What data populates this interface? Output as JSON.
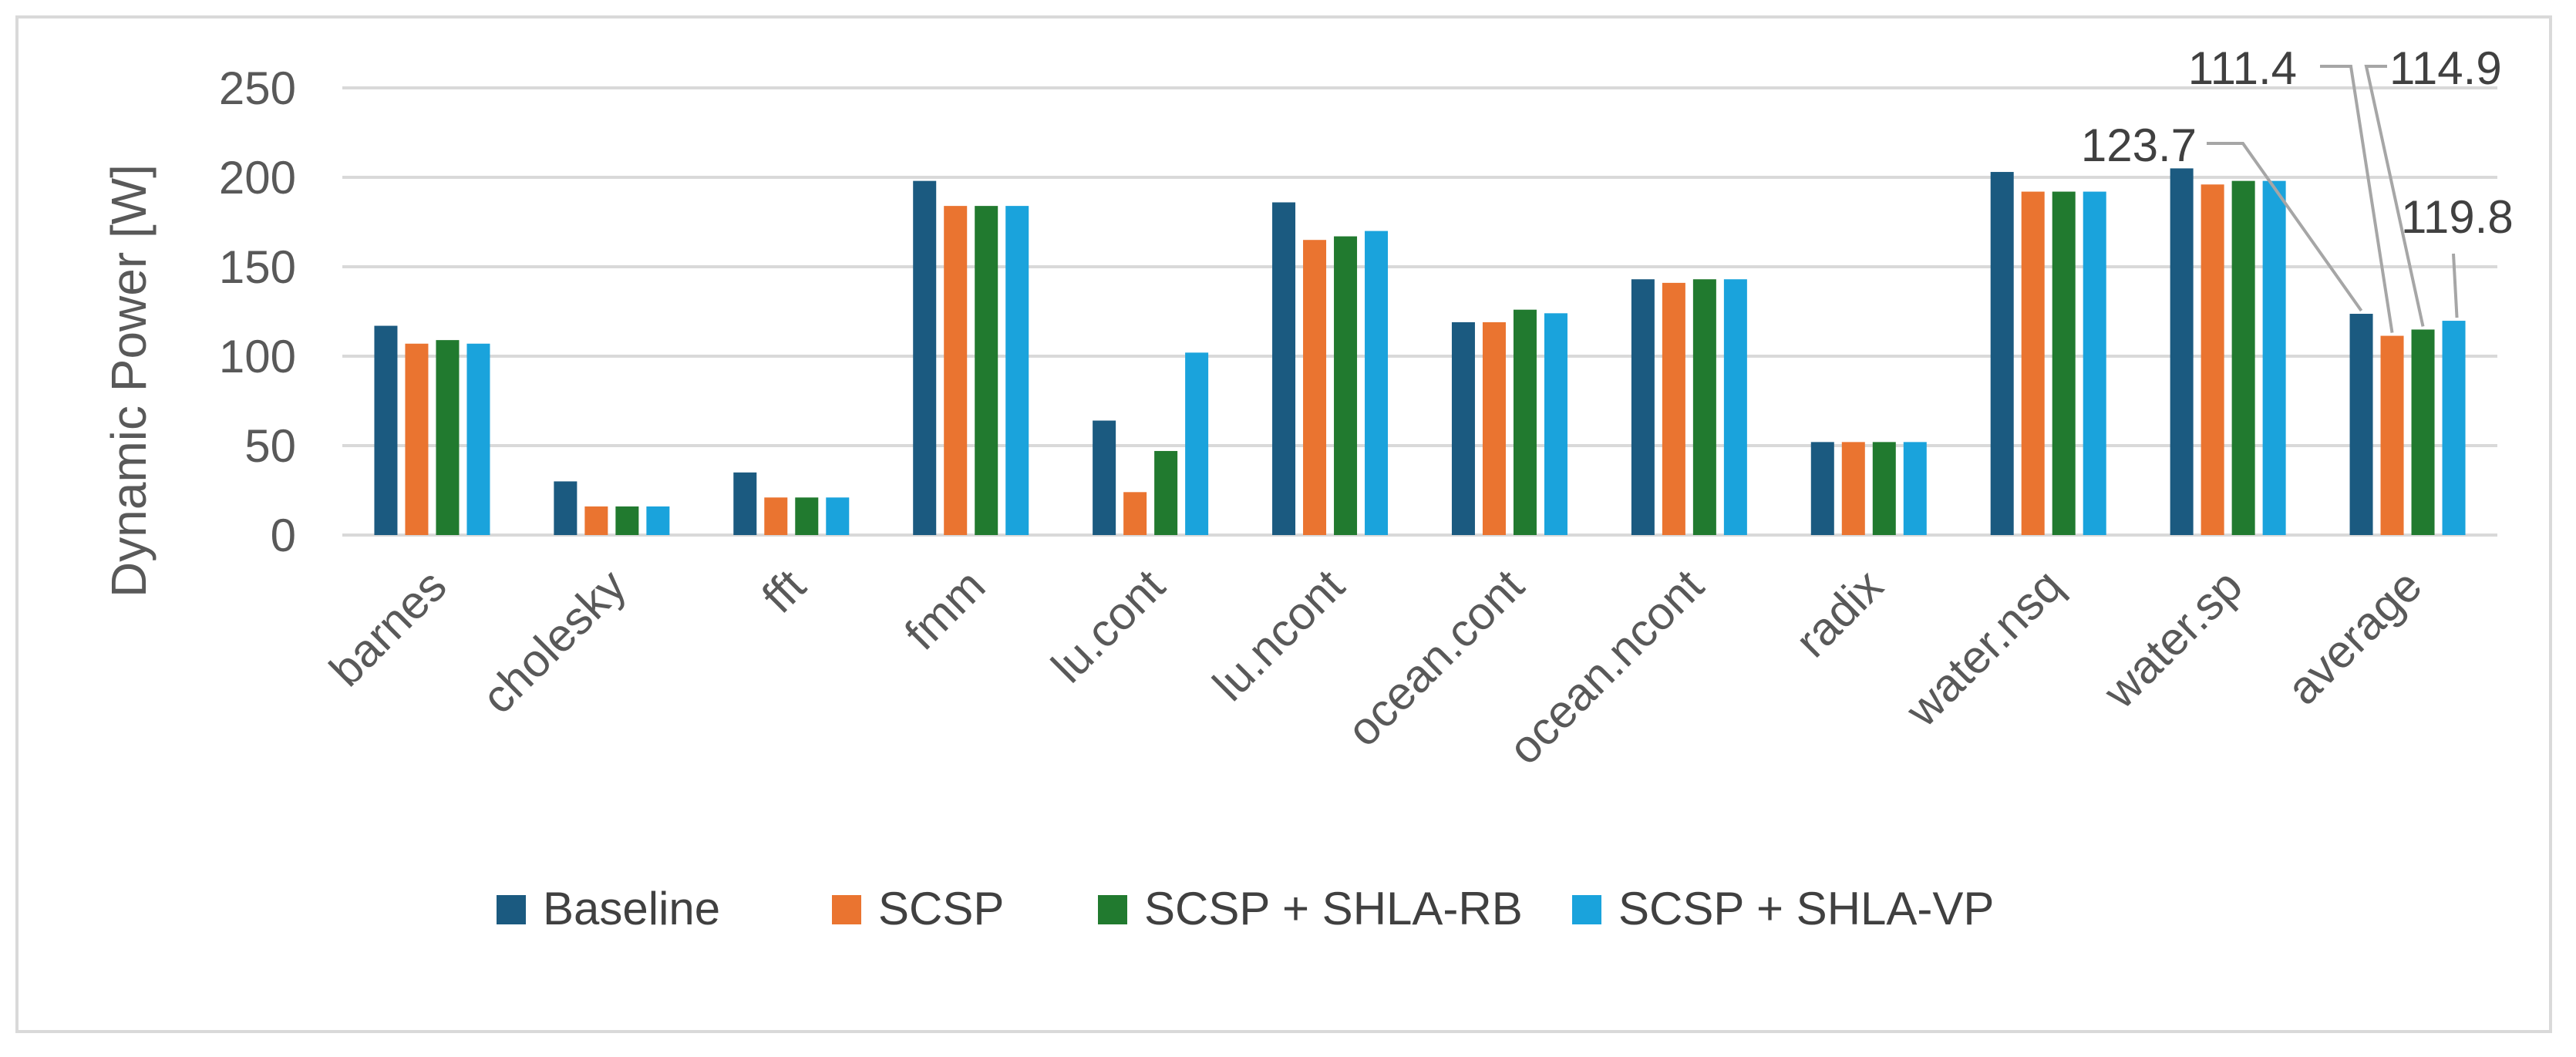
{
  "chart_data": {
    "type": "bar",
    "title": "",
    "xlabel": "",
    "ylabel": "Dynamic Power [W]",
    "ylim": [
      0,
      250
    ],
    "yticks": [
      0,
      50,
      100,
      150,
      200,
      250
    ],
    "grid": true,
    "legend_position": "bottom",
    "categories": [
      "barnes",
      "cholesky",
      "fft",
      "fmm",
      "lu.cont",
      "lu.ncont",
      "ocean.cont",
      "ocean.ncont",
      "radix",
      "water.nsq",
      "water.sp",
      "average"
    ],
    "series": [
      {
        "name": "Baseline",
        "color": "#1b5a80",
        "values": [
          117,
          30,
          35,
          198,
          64,
          186,
          119,
          143,
          52,
          203,
          205,
          123.7
        ]
      },
      {
        "name": "SCSP",
        "color": "#ea7430",
        "values": [
          107,
          16,
          21,
          184,
          24,
          165,
          119,
          141,
          52,
          192,
          196,
          111.4
        ]
      },
      {
        "name": "SCSP + SHLA-RB",
        "color": "#217a2f",
        "values": [
          109,
          16,
          21,
          184,
          47,
          167,
          126,
          143,
          52,
          192,
          198,
          114.9
        ]
      },
      {
        "name": "SCSP + SHLA-VP",
        "color": "#1aa3dc",
        "values": [
          107,
          16,
          21,
          184,
          102,
          170,
          124,
          143,
          52,
          192,
          198,
          119.8
        ]
      }
    ],
    "annotations": [
      {
        "text": "123.7",
        "category": "average",
        "series": "Baseline"
      },
      {
        "text": "111.4",
        "category": "average",
        "series": "SCSP"
      },
      {
        "text": "114.9",
        "category": "average",
        "series": "SCSP + SHLA-RB"
      },
      {
        "text": "119.8",
        "category": "average",
        "series": "SCSP + SHLA-VP"
      }
    ],
    "gridline_color": "#d9d9d9",
    "callout_line_color": "#a6a6a6"
  }
}
